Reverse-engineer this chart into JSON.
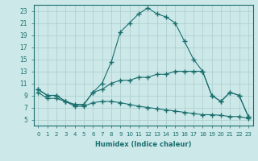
{
  "xlabel": "Humidex (Indice chaleur)",
  "background_color": "#cce8e8",
  "grid_color": "#aacccc",
  "line_color": "#1a6e6e",
  "xlim": [
    -0.5,
    23.5
  ],
  "ylim": [
    4,
    24
  ],
  "yticks": [
    5,
    7,
    9,
    11,
    13,
    15,
    17,
    19,
    21,
    23
  ],
  "xticks": [
    0,
    1,
    2,
    3,
    4,
    5,
    6,
    7,
    8,
    9,
    10,
    11,
    12,
    13,
    14,
    15,
    16,
    17,
    18,
    19,
    20,
    21,
    22,
    23
  ],
  "line1_y": [
    10,
    9,
    9,
    8,
    7.5,
    7.5,
    9.5,
    11,
    14.5,
    19.5,
    21,
    22.5,
    23.5,
    22.5,
    22,
    21,
    18,
    15,
    13,
    9,
    8,
    9.5,
    9,
    5.5
  ],
  "line2_y": [
    10,
    9,
    9,
    8,
    7.5,
    7.5,
    9.5,
    10,
    11,
    11.5,
    11.5,
    12,
    12,
    12.5,
    12.5,
    13,
    13,
    13,
    13,
    9,
    8,
    9.5,
    9,
    5.5
  ],
  "line3_y": [
    9.5,
    8.5,
    8.5,
    8,
    7.2,
    7.2,
    7.8,
    8.0,
    8.0,
    7.8,
    7.5,
    7.2,
    7.0,
    6.8,
    6.6,
    6.4,
    6.2,
    6.0,
    5.8,
    5.8,
    5.7,
    5.5,
    5.5,
    5.2
  ]
}
